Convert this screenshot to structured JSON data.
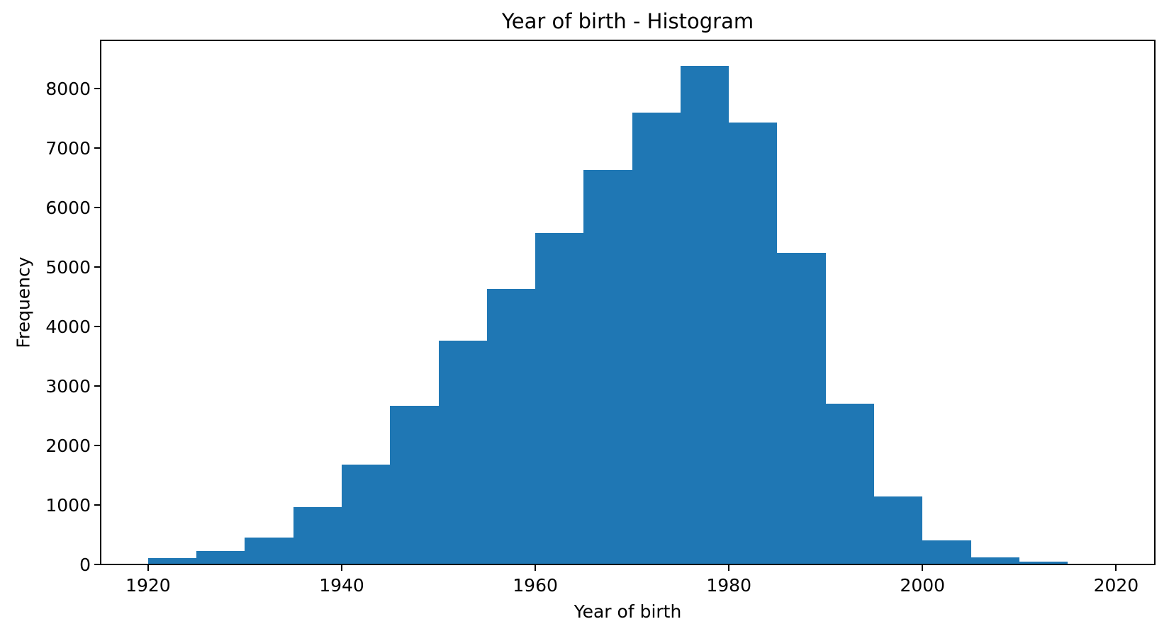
{
  "chart_data": {
    "type": "bar",
    "subtype": "histogram",
    "title": "Year of birth - Histogram",
    "xlabel": "Year of birth",
    "ylabel": "Frequency",
    "bin_edges": [
      1920,
      1925,
      1930,
      1935,
      1940,
      1945,
      1950,
      1955,
      1960,
      1965,
      1970,
      1975,
      1980,
      1985,
      1990,
      1995,
      2000,
      2005,
      2010,
      2015
    ],
    "counts": [
      105,
      225,
      450,
      965,
      1680,
      2665,
      3760,
      4630,
      5570,
      6630,
      7590,
      8380,
      7430,
      5240,
      2700,
      1145,
      405,
      120,
      45
    ],
    "x_ticks": [
      1920,
      1940,
      1960,
      1980,
      2000,
      2020
    ],
    "y_ticks": [
      0,
      1000,
      2000,
      3000,
      4000,
      5000,
      6000,
      7000,
      8000
    ],
    "xlim": [
      1915.1,
      2024.0
    ],
    "ylim": [
      0,
      8810
    ],
    "grid": false,
    "legend": null,
    "bar_color": "#1f77b4",
    "axis_color": "#000000",
    "text_color": "#000000",
    "background_color": "#ffffff"
  }
}
